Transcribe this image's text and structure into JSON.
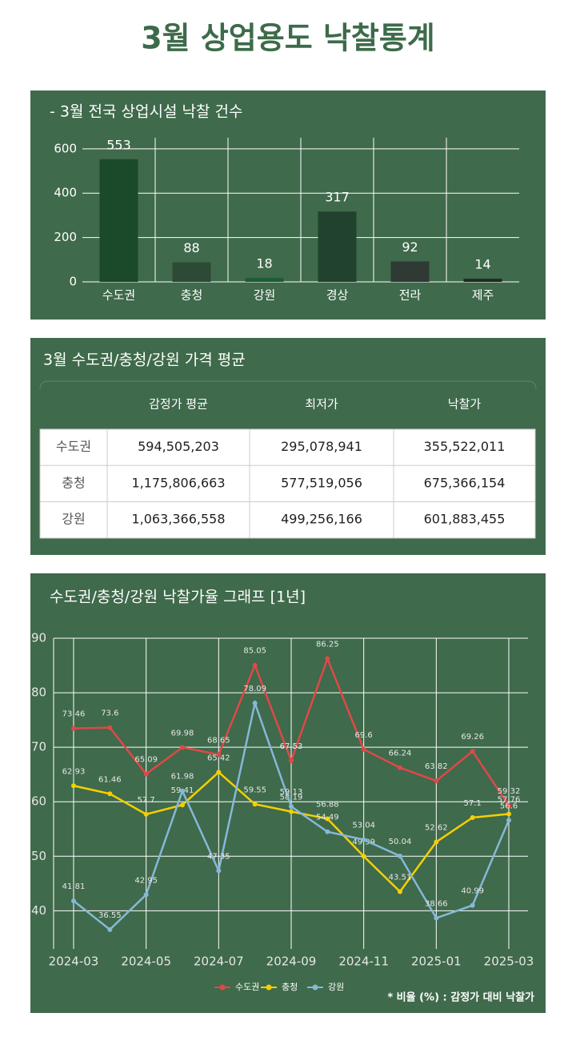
{
  "title": "3월 상업용도 낙찰통계",
  "chart_data": [
    {
      "type": "bar",
      "title": "- 3월 전국 상업시설 낙찰 건수",
      "categories": [
        "수도권",
        "충청",
        "강원",
        "경상",
        "전라",
        "제주"
      ],
      "values": [
        553,
        88,
        18,
        317,
        92,
        14
      ],
      "colors": [
        "#1b4a2a",
        "#2d4a37",
        "#1f5c34",
        "#21432e",
        "#2e3a33",
        "#1f2a22"
      ],
      "ylim": [
        0,
        650
      ],
      "yticks": [
        0,
        200,
        400,
        600
      ],
      "grid": true
    },
    {
      "type": "line",
      "title": "수도권/충청/강원 낙찰가율 그래프 [1년]",
      "categories": [
        "2024-03",
        null,
        "2024-05",
        null,
        "2024-07",
        null,
        "2024-09",
        null,
        "2024-11",
        null,
        "2025-01",
        null,
        "2025-03"
      ],
      "series": [
        {
          "name": "수도권",
          "color": "#e04848",
          "values": [
            73.46,
            73.6,
            65.09,
            69.98,
            68.65,
            85.05,
            67.53,
            86.25,
            69.6,
            66.24,
            63.82,
            69.26,
            59.32
          ]
        },
        {
          "name": "충청",
          "color": "#f5cf00",
          "values": [
            62.93,
            61.46,
            57.7,
            59.41,
            65.42,
            59.55,
            58.19,
            56.88,
            49.99,
            43.51,
            52.62,
            57.1,
            57.76
          ]
        },
        {
          "name": "강원",
          "color": "#86b8d8",
          "values": [
            41.81,
            36.55,
            42.95,
            61.98,
            47.35,
            78.09,
            59.13,
            54.49,
            53.04,
            50.04,
            38.66,
            40.99,
            56.6
          ]
        }
      ],
      "ylim": [
        33,
        90
      ],
      "yticks": [
        40,
        50,
        60,
        70,
        80,
        90
      ],
      "grid": true,
      "legend": "bottom",
      "note": "* 비율 (%) : 감정가 대비 낙찰가"
    }
  ],
  "table": {
    "title": "3월 수도권/충청/강원 가격 평균",
    "columns": [
      "감정가 평균",
      "최저가",
      "낙찰가"
    ],
    "rows": [
      [
        "수도권",
        "594,505,203",
        "295,078,941",
        "355,522,011"
      ],
      [
        "충청",
        "1,175,806,663",
        "577,519,056",
        "675,366,154"
      ],
      [
        "강원",
        "1,063,366,558",
        "499,256,166",
        "601,883,455"
      ]
    ]
  }
}
